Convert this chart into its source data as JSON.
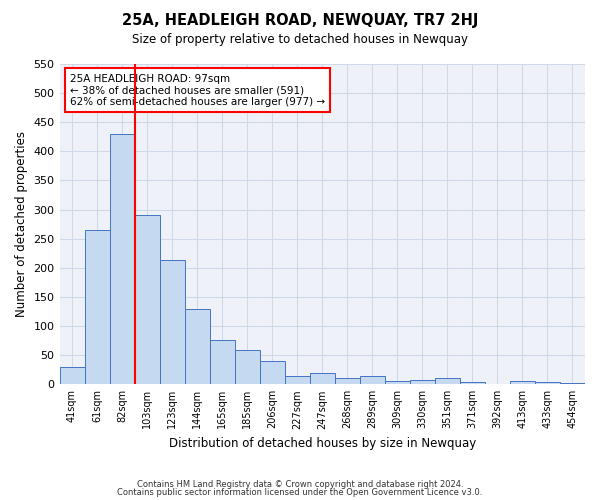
{
  "title": "25A, HEADLEIGH ROAD, NEWQUAY, TR7 2HJ",
  "subtitle": "Size of property relative to detached houses in Newquay",
  "xlabel": "Distribution of detached houses by size in Newquay",
  "ylabel": "Number of detached properties",
  "bin_labels": [
    "41sqm",
    "61sqm",
    "82sqm",
    "103sqm",
    "123sqm",
    "144sqm",
    "165sqm",
    "185sqm",
    "206sqm",
    "227sqm",
    "247sqm",
    "268sqm",
    "289sqm",
    "309sqm",
    "330sqm",
    "351sqm",
    "371sqm",
    "392sqm",
    "413sqm",
    "433sqm",
    "454sqm"
  ],
  "bar_heights": [
    30,
    265,
    430,
    290,
    213,
    130,
    76,
    59,
    40,
    15,
    20,
    10,
    15,
    5,
    8,
    10,
    4,
    0,
    5,
    4,
    3
  ],
  "bar_color": "#c5d9f0",
  "bar_edge_color": "#4472c4",
  "vline_x_index": 3,
  "vline_color": "red",
  "annotation_line1": "25A HEADLEIGH ROAD: 97sqm",
  "annotation_line2": "← 38% of detached houses are smaller (591)",
  "annotation_line3": "62% of semi-detached houses are larger (977) →",
  "box_color": "red",
  "ylim": [
    0,
    550
  ],
  "yticks": [
    0,
    50,
    100,
    150,
    200,
    250,
    300,
    350,
    400,
    450,
    500,
    550
  ],
  "grid_color": "#d0d8e8",
  "background_color": "#eef2f8",
  "footer_line1": "Contains HM Land Registry data © Crown copyright and database right 2024.",
  "footer_line2": "Contains public sector information licensed under the Open Government Licence v3.0."
}
